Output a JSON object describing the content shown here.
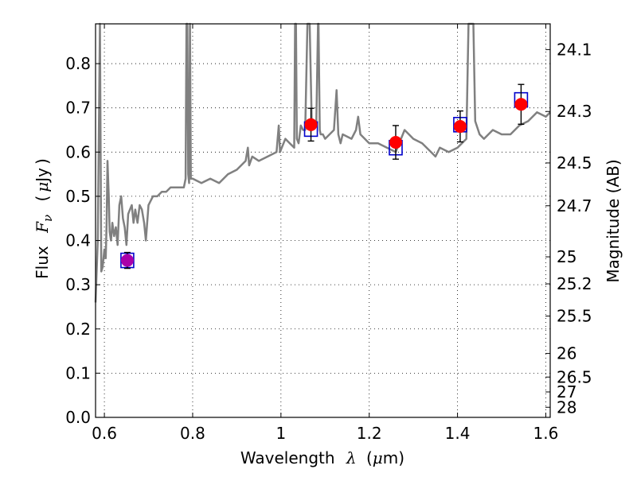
{
  "chart_data": {
    "type": "scatter",
    "xlabel_text": "Wavelength",
    "xlabel_symbol": "λ",
    "xlabel_unit_open": "(",
    "xlabel_unit_mu": "μ",
    "xlabel_unit_rest": "m)",
    "ylabel_text": "Flux",
    "ylabel_symbol": "F",
    "ylabel_sub": "ν",
    "ylabel_unit_open": "(",
    "ylabel_unit_mu": "μ",
    "ylabel_unit_rest": "Jy",
    "ylabel_unit_close": ")",
    "y2label": "Magnitude (AB)",
    "xlim": [
      0.58,
      1.61
    ],
    "ylim": [
      0.0,
      0.89
    ],
    "grid": true,
    "x_ticks": [
      {
        "value": 0.6,
        "label": "0.6"
      },
      {
        "value": 0.8,
        "label": "0.8"
      },
      {
        "value": 1.0,
        "label": "1"
      },
      {
        "value": 1.2,
        "label": "1.2"
      },
      {
        "value": 1.4,
        "label": "1.4"
      },
      {
        "value": 1.6,
        "label": "1.6"
      }
    ],
    "y_ticks": [
      {
        "value": 0.0,
        "label": "0.0"
      },
      {
        "value": 0.1,
        "label": "0.1"
      },
      {
        "value": 0.2,
        "label": "0.2"
      },
      {
        "value": 0.3,
        "label": "0.3"
      },
      {
        "value": 0.4,
        "label": "0.4"
      },
      {
        "value": 0.5,
        "label": "0.5"
      },
      {
        "value": 0.6,
        "label": "0.6"
      },
      {
        "value": 0.7,
        "label": "0.7"
      },
      {
        "value": 0.8,
        "label": "0.8"
      }
    ],
    "y2_ticks": [
      {
        "mag": 24.1,
        "label": "24.1"
      },
      {
        "mag": 24.3,
        "label": "24.3"
      },
      {
        "mag": 24.5,
        "label": "24.5"
      },
      {
        "mag": 24.7,
        "label": "24.7"
      },
      {
        "mag": 25.0,
        "label": "25"
      },
      {
        "mag": 25.2,
        "label": "25.2"
      },
      {
        "mag": 25.5,
        "label": "25.5"
      },
      {
        "mag": 26.0,
        "label": "26"
      },
      {
        "mag": 26.5,
        "label": "26.5"
      },
      {
        "mag": 27.0,
        "label": "27"
      },
      {
        "mag": 28.0,
        "label": "28"
      }
    ],
    "series": [
      {
        "kind": "model_spectrum",
        "color": "#808080",
        "x": [
          0.58,
          0.585,
          0.59,
          0.593,
          0.596,
          0.6,
          0.603,
          0.605,
          0.607,
          0.61,
          0.612,
          0.615,
          0.618,
          0.622,
          0.626,
          0.63,
          0.634,
          0.638,
          0.642,
          0.646,
          0.65,
          0.654,
          0.658,
          0.662,
          0.666,
          0.67,
          0.675,
          0.68,
          0.685,
          0.69,
          0.694,
          0.7,
          0.71,
          0.72,
          0.73,
          0.74,
          0.75,
          0.76,
          0.77,
          0.78,
          0.784,
          0.786,
          0.788,
          0.79,
          0.792,
          0.794,
          0.796,
          0.8,
          0.82,
          0.84,
          0.86,
          0.88,
          0.9,
          0.92,
          0.925,
          0.928,
          0.935,
          0.95,
          0.97,
          0.99,
          0.995,
          0.998,
          1.002,
          1.01,
          1.02,
          1.03,
          1.032,
          1.034,
          1.036,
          1.04,
          1.045,
          1.05,
          1.055,
          1.06,
          1.065,
          1.07,
          1.075,
          1.08,
          1.084,
          1.085,
          1.088,
          1.09,
          1.095,
          1.1,
          1.12,
          1.126,
          1.13,
          1.135,
          1.14,
          1.16,
          1.17,
          1.175,
          1.18,
          1.2,
          1.22,
          1.24,
          1.26,
          1.28,
          1.3,
          1.32,
          1.34,
          1.35,
          1.36,
          1.38,
          1.4,
          1.42,
          1.425,
          1.428,
          1.433,
          1.436,
          1.44,
          1.45,
          1.46,
          1.48,
          1.5,
          1.52,
          1.54,
          1.56,
          1.58,
          1.6,
          1.61
        ],
        "y": [
          0.26,
          0.4,
          0.89,
          0.33,
          0.34,
          0.38,
          0.36,
          0.44,
          0.58,
          0.5,
          0.42,
          0.4,
          0.44,
          0.41,
          0.43,
          0.39,
          0.48,
          0.5,
          0.45,
          0.43,
          0.39,
          0.46,
          0.47,
          0.48,
          0.44,
          0.47,
          0.44,
          0.48,
          0.47,
          0.44,
          0.4,
          0.48,
          0.5,
          0.5,
          0.51,
          0.51,
          0.52,
          0.52,
          0.52,
          0.52,
          0.54,
          0.89,
          0.89,
          0.55,
          0.53,
          0.89,
          0.54,
          0.54,
          0.53,
          0.54,
          0.53,
          0.55,
          0.56,
          0.58,
          0.61,
          0.57,
          0.59,
          0.58,
          0.59,
          0.6,
          0.66,
          0.6,
          0.61,
          0.63,
          0.62,
          0.61,
          0.89,
          0.89,
          0.63,
          0.62,
          0.66,
          0.65,
          0.65,
          0.89,
          0.89,
          0.66,
          0.66,
          0.66,
          0.89,
          0.89,
          0.65,
          0.64,
          0.64,
          0.63,
          0.65,
          0.74,
          0.64,
          0.62,
          0.64,
          0.63,
          0.65,
          0.68,
          0.64,
          0.62,
          0.62,
          0.61,
          0.6,
          0.65,
          0.63,
          0.62,
          0.6,
          0.59,
          0.61,
          0.6,
          0.61,
          0.63,
          0.89,
          0.89,
          0.89,
          0.89,
          0.67,
          0.64,
          0.63,
          0.65,
          0.64,
          0.64,
          0.66,
          0.67,
          0.69,
          0.68,
          0.69
        ]
      },
      {
        "kind": "synthetic_photometry",
        "marker": "open-square",
        "color": "#0000cc",
        "x": [
          0.652,
          1.068,
          1.26,
          1.406,
          1.544
        ],
        "y": [
          0.355,
          0.652,
          0.61,
          0.662,
          0.718
        ]
      },
      {
        "kind": "observed_photometry",
        "marker": "filled-circle",
        "colors": [
          "#aa00aa",
          "#ff0000",
          "#ff0000",
          "#ff0000",
          "#ff0000"
        ],
        "x": [
          0.652,
          1.068,
          1.26,
          1.406,
          1.544
        ],
        "y": [
          0.355,
          0.662,
          0.622,
          0.658,
          0.708
        ],
        "yerr": [
          0.018,
          0.037,
          0.038,
          0.035,
          0.045
        ]
      }
    ]
  }
}
